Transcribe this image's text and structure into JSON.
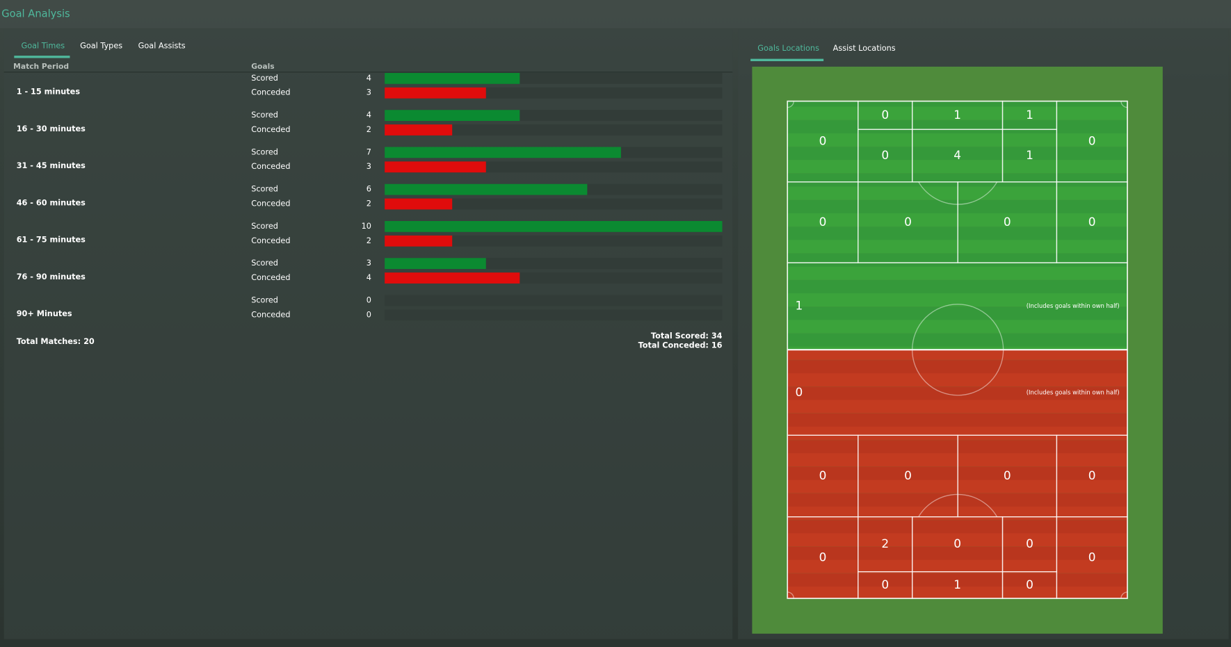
{
  "header": {
    "title": "Goal Analysis"
  },
  "left_tabs": [
    "Goal Times",
    "Goal Types",
    "Goal Assists"
  ],
  "table": {
    "period_header": "Match Period",
    "goals_header": "Goals",
    "scored_label": "Scored",
    "conceded_label": "Conceded",
    "scored_color": "#0b8a31",
    "conceded_color": "#e00c0c",
    "rows": [
      {
        "period": "1 - 15 minutes",
        "scored": 4,
        "conceded": 3
      },
      {
        "period": "16 - 30 minutes",
        "scored": 4,
        "conceded": 2
      },
      {
        "period": "31 - 45 minutes",
        "scored": 7,
        "conceded": 3
      },
      {
        "period": "46 - 60 minutes",
        "scored": 6,
        "conceded": 2
      },
      {
        "period": "61 - 75 minutes",
        "scored": 10,
        "conceded": 2
      },
      {
        "period": "76 - 90 minutes",
        "scored": 3,
        "conceded": 4
      },
      {
        "period": "90+ Minutes",
        "scored": 0,
        "conceded": 0
      }
    ],
    "total_matches": "Total Matches: 20",
    "total_scored": "Total Scored: 34",
    "total_conceded": "Total Conceded: 16"
  },
  "right_tabs": [
    "Goals Locations",
    "Assist Locations"
  ],
  "pitch": {
    "note": "(Includes goals within own half)",
    "zones": [
      0,
      0,
      1,
      1,
      0,
      0,
      4,
      1,
      0,
      0,
      0,
      0,
      1,
      0,
      0,
      0,
      0,
      0,
      0,
      2,
      0,
      0,
      0,
      0,
      1,
      0
    ]
  }
}
